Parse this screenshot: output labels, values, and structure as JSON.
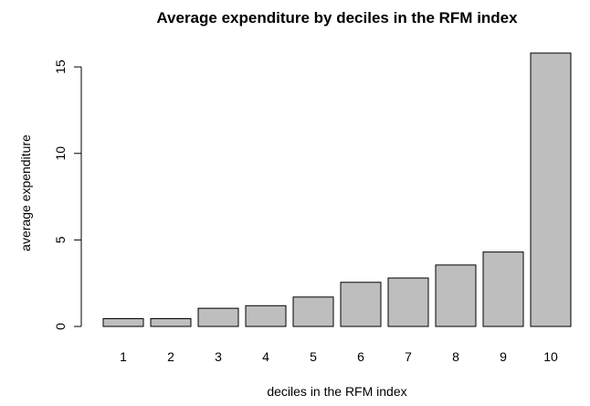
{
  "chart_data": {
    "type": "bar",
    "title": "Average expenditure by deciles in the RFM index",
    "xlabel": "deciles in the RFM index",
    "ylabel": "average expenditure",
    "categories": [
      "1",
      "2",
      "3",
      "4",
      "5",
      "6",
      "7",
      "8",
      "9",
      "10"
    ],
    "values": [
      0.45,
      0.45,
      1.05,
      1.2,
      1.7,
      2.55,
      2.8,
      3.55,
      4.3,
      15.8
    ],
    "ylim": [
      0,
      15.8
    ],
    "yticks": [
      0,
      5,
      10,
      15
    ],
    "grid": false,
    "legend": "none",
    "colors": {
      "bar_fill": "#bebebe",
      "bar_stroke": "#000000"
    }
  }
}
